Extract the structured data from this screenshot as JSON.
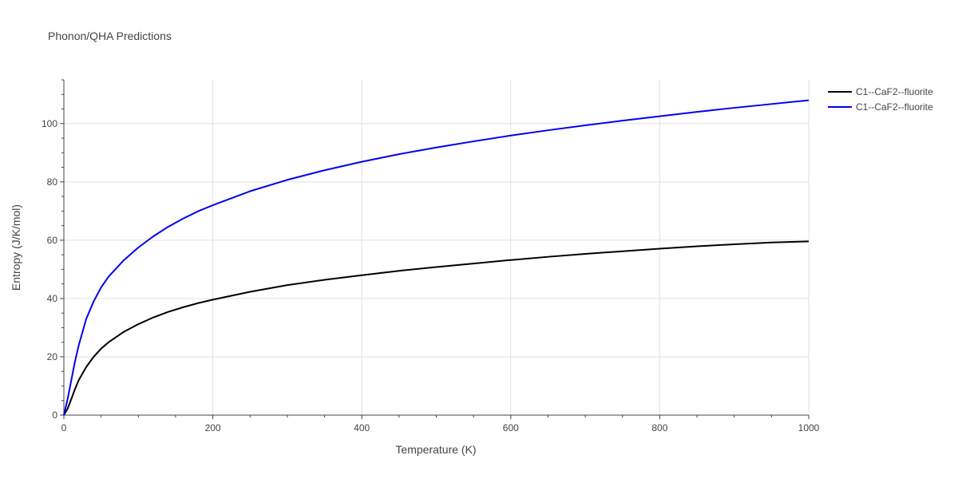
{
  "chart_data": {
    "type": "line",
    "title": "Phonon/QHA Predictions",
    "xlabel": "Temperature (K)",
    "ylabel": "Entropy (J/K/mol)",
    "xlim": [
      0,
      1000
    ],
    "ylim": [
      0,
      115
    ],
    "x_ticks": [
      0,
      200,
      400,
      600,
      800,
      1000
    ],
    "y_ticks": [
      0,
      20,
      40,
      60,
      80,
      100
    ],
    "grid": true,
    "legend_position": "top-right",
    "series": [
      {
        "name": "C1--CaF2--fluorite",
        "color": "#000000",
        "x": [
          0,
          5,
          10,
          15,
          20,
          30,
          40,
          50,
          60,
          80,
          100,
          120,
          140,
          160,
          180,
          200,
          250,
          300,
          350,
          400,
          450,
          500,
          550,
          600,
          650,
          700,
          750,
          800,
          850,
          900,
          950,
          1000
        ],
        "y": [
          0,
          2.2,
          5.5,
          9,
          12,
          16.5,
          20,
          22.8,
          25,
          28.5,
          31.2,
          33.5,
          35.4,
          37,
          38.4,
          39.6,
          42.3,
          44.6,
          46.4,
          48,
          49.5,
          50.8,
          52,
          53.2,
          54.3,
          55.3,
          56.2,
          57.1,
          57.9,
          58.6,
          59.2,
          59.6
        ]
      },
      {
        "name": "C1--CaF2--fluorite",
        "color": "#0000ee",
        "x": [
          0,
          5,
          10,
          15,
          20,
          30,
          40,
          50,
          60,
          80,
          100,
          120,
          140,
          160,
          180,
          200,
          250,
          300,
          350,
          400,
          450,
          500,
          550,
          600,
          650,
          700,
          750,
          800,
          850,
          900,
          950,
          1000
        ],
        "y": [
          0,
          5.5,
          12,
          18.5,
          24,
          33,
          39,
          43.8,
          47.5,
          53,
          57.5,
          61.3,
          64.6,
          67.4,
          69.9,
          72,
          76.8,
          80.7,
          84,
          86.9,
          89.5,
          91.8,
          93.9,
          95.9,
          97.7,
          99.4,
          101,
          102.5,
          104,
          105.4,
          106.7,
          108
        ]
      }
    ]
  }
}
